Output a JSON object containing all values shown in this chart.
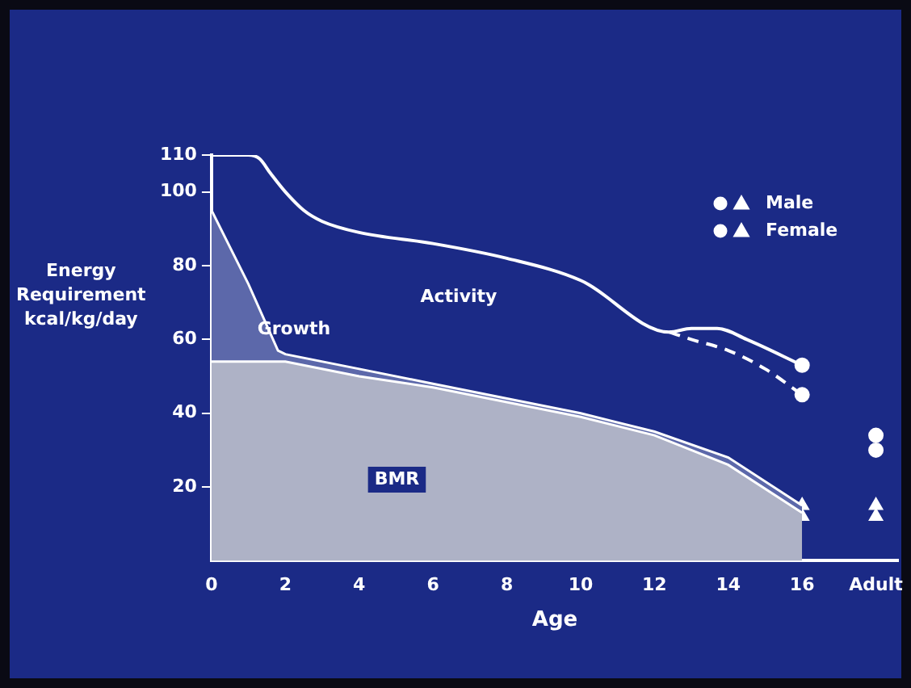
{
  "chart_data": {
    "type": "area",
    "xlabel": "Age",
    "ylabel": "Energy Requirement kcal/kg/day",
    "stacked": true,
    "legend": "top right",
    "grid": false,
    "x": [
      0,
      1,
      1.8,
      2,
      4,
      6,
      8,
      10,
      12,
      14,
      16
    ],
    "xlim": [
      0,
      18.6
    ],
    "xticks": [
      0,
      2,
      4,
      6,
      8,
      10,
      12,
      14,
      16,
      {
        "value": 18,
        "label": "Adult"
      }
    ],
    "ylim": [
      0,
      110
    ],
    "yticks": [
      20,
      40,
      60,
      80,
      100,
      110
    ],
    "series": [
      {
        "type": "area",
        "color": "#aeb2c6",
        "values": [
          54,
          54,
          54,
          54,
          50,
          47,
          43,
          39,
          34,
          26,
          13
        ]
      },
      {
        "type": "area",
        "color": "#5c68aa",
        "values": [
          41,
          21,
          3,
          2,
          2,
          1,
          1,
          1,
          1,
          2,
          2
        ]
      },
      {
        "type": "line",
        "color": "#ffffff",
        "line_style": "solid",
        "marker": "none",
        "x": [
          0,
          1,
          1.3,
          1.6,
          2,
          2.5,
          3,
          4,
          6,
          8,
          10,
          12.4,
          13,
          13.7,
          14.5,
          16
        ],
        "values": [
          110,
          110,
          109,
          105,
          100,
          95,
          92,
          89,
          86,
          82,
          76,
          62,
          63,
          63,
          60,
          53
        ]
      },
      {
        "type": "line",
        "color": "#ffffff",
        "line_style": "dashed",
        "marker": "none",
        "x": [
          12.4,
          13,
          14,
          15,
          16
        ],
        "values": [
          62,
          60,
          57,
          52,
          45
        ]
      },
      {
        "type": "scatter",
        "color": "#ffffff",
        "marker": "circle",
        "x": [
          16,
          18
        ],
        "values": [
          53,
          34
        ]
      },
      {
        "type": "scatter",
        "name": "Male",
        "color": "#ffffff",
        "marker": "triangle",
        "x": [
          16,
          18
        ],
        "values": [
          15,
          15
        ]
      },
      {
        "type": "scatter",
        "color": "#ffffff",
        "marker": "circle",
        "x": [
          16,
          18
        ],
        "values": [
          45,
          30
        ]
      },
      {
        "type": "scatter",
        "name": "Female",
        "color": "#ffffff",
        "marker": "triangle",
        "x": [
          16,
          18
        ],
        "values": [
          12,
          12
        ]
      }
    ],
    "annotations": [
      "Activity",
      "Growth",
      "BMR"
    ]
  }
}
